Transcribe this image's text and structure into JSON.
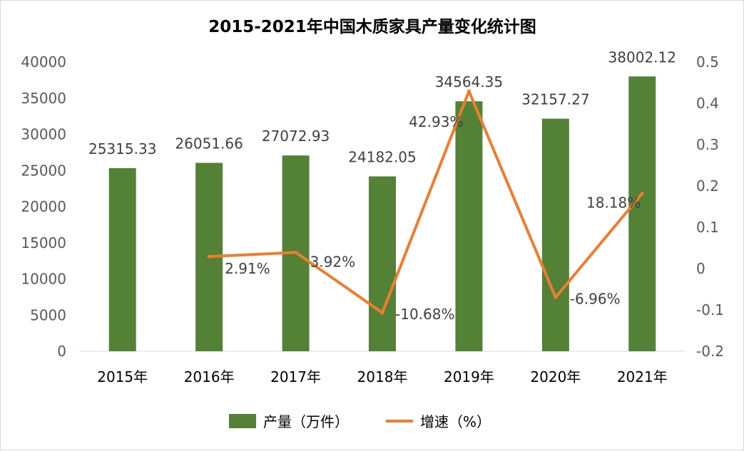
{
  "chart_data": {
    "type": "bar",
    "title": "2015-2021年中国木质家具产量变化统计图",
    "categories": [
      "2015年",
      "2016年",
      "2017年",
      "2018年",
      "2019年",
      "2020年",
      "2021年"
    ],
    "series": [
      {
        "name": "产量（万件）",
        "type": "bar",
        "axis": "left",
        "color": "#538135",
        "values": [
          25315.33,
          26051.66,
          27072.93,
          24182.05,
          34564.35,
          32157.27,
          38002.12
        ],
        "labels": [
          "25315.33",
          "26051.66",
          "27072.93",
          "24182.05",
          "34564.35",
          "32157.27",
          "38002.12"
        ]
      },
      {
        "name": "增速（%）",
        "type": "line",
        "axis": "right",
        "color": "#ed7d31",
        "values": [
          null,
          0.0291,
          0.0392,
          -0.1068,
          0.4293,
          -0.0696,
          0.1818
        ],
        "labels": [
          "",
          "2.91%",
          "3.92%",
          "-10.68%",
          "42.93%",
          "-6.96%",
          "18.18%"
        ]
      }
    ],
    "y_left": {
      "min": 0,
      "max": 40000,
      "ticks": [
        "0",
        "5000",
        "10000",
        "15000",
        "20000",
        "25000",
        "30000",
        "35000",
        "40000"
      ]
    },
    "y_right": {
      "min": -0.2,
      "max": 0.5,
      "ticks": [
        "-0.2",
        "-0.1",
        "0",
        "0.1",
        "0.2",
        "0.3",
        "0.4",
        "0.5"
      ]
    },
    "grid": false,
    "legend_position": "bottom"
  }
}
